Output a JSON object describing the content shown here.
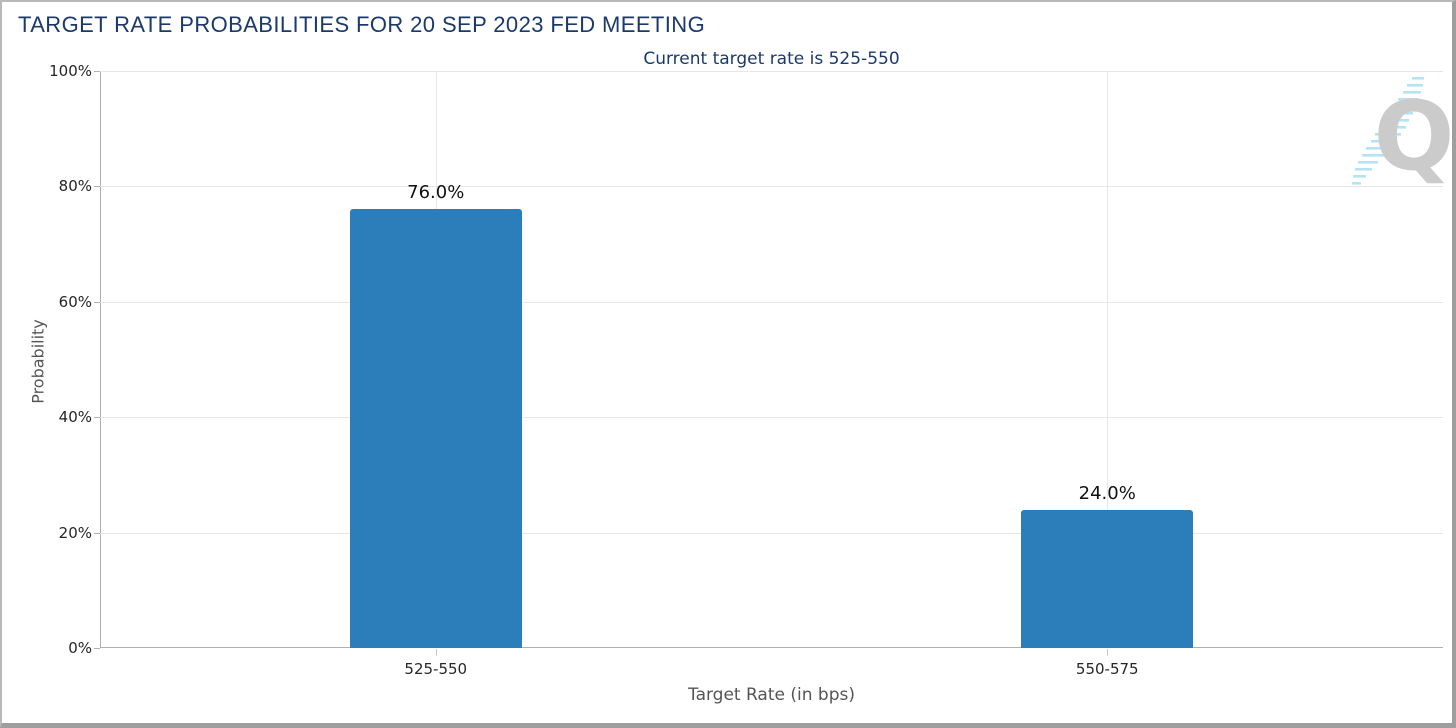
{
  "header": {
    "title": "TARGET RATE PROBABILITIES FOR 20 SEP 2023 FED MEETING",
    "subtitle": "Current target rate is 525-550"
  },
  "chart_data": {
    "type": "bar",
    "title": "TARGET RATE PROBABILITIES FOR 20 SEP 2023 FED MEETING",
    "subtitle": "Current target rate is 525-550",
    "categories": [
      "525-550",
      "550-575"
    ],
    "values": [
      76.0,
      24.0
    ],
    "value_labels": [
      "76.0%",
      "24.0%"
    ],
    "xlabel": "Target Rate (in bps)",
    "ylabel": "Probability",
    "ylim": [
      0,
      100
    ],
    "yticks": [
      0,
      20,
      40,
      60,
      80,
      100
    ],
    "ytick_labels": [
      "0%",
      "20%",
      "40%",
      "60%",
      "80%",
      "100%"
    ],
    "grid": true,
    "legend_position": "none",
    "bar_color": "#2b7eba"
  },
  "colors": {
    "title_text": "#1b3a6b",
    "subtitle_text": "#1b3a6b",
    "bar": "#2b7eba",
    "gridline": "#e7e7e7",
    "axis_line": "#b0b0b0",
    "tick_text": "#262626",
    "axis_title_text": "#555555",
    "value_label_text": "#111111",
    "frame_border": "#9e9e9e",
    "logo_letter": "#cbcbcb",
    "logo_dashes": "#b5e3f4"
  },
  "logo": {
    "letter": "Q"
  }
}
